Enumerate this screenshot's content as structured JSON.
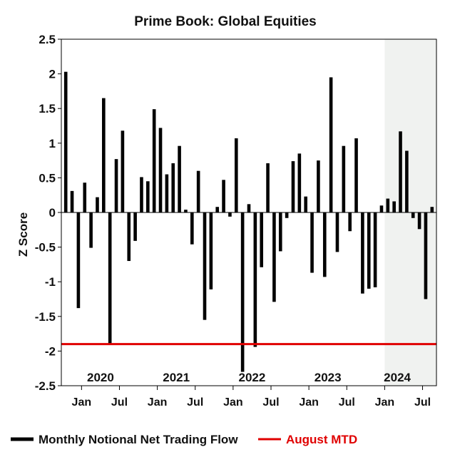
{
  "chart_data": {
    "type": "bar",
    "title": "Prime Book: Global Equities",
    "ylabel": "Z Score",
    "xlabel": "",
    "ylim": [
      -2.5,
      2.5
    ],
    "yticks": [
      2.5,
      2,
      1.5,
      1,
      0.5,
      0,
      -0.5,
      -1,
      -1.5,
      -2,
      -2.5
    ],
    "ytick_labels": [
      "2.5",
      "2",
      "1.5",
      "1",
      "0.5",
      "0",
      "-0.5",
      "-1",
      "-1.5",
      "-2",
      "-2.5"
    ],
    "x_ticks": [
      {
        "label": "Jan",
        "month_index": 3
      },
      {
        "label": "Jul",
        "month_index": 9
      },
      {
        "label": "Jan",
        "month_index": 15
      },
      {
        "label": "Jul",
        "month_index": 21
      },
      {
        "label": "Jan",
        "month_index": 27
      },
      {
        "label": "Jul",
        "month_index": 33
      },
      {
        "label": "Jan",
        "month_index": 39
      },
      {
        "label": "Jul",
        "month_index": 45
      },
      {
        "label": "Jan",
        "month_index": 51
      },
      {
        "label": "Jul",
        "month_index": 57
      }
    ],
    "year_labels": [
      {
        "label": "2020",
        "month_index": 6
      },
      {
        "label": "2021",
        "month_index": 18
      },
      {
        "label": "2022",
        "month_index": 30
      },
      {
        "label": "2023",
        "month_index": 42
      },
      {
        "label": "2024",
        "month_index": 53
      }
    ],
    "categories": [
      "2019-10",
      "2019-11",
      "2019-12",
      "2020-01",
      "2020-02",
      "2020-03",
      "2020-04",
      "2020-05",
      "2020-06",
      "2020-07",
      "2020-08",
      "2020-09",
      "2020-10",
      "2020-11",
      "2020-12",
      "2021-01",
      "2021-02",
      "2021-03",
      "2021-04",
      "2021-05",
      "2021-06",
      "2021-07",
      "2021-08",
      "2021-09",
      "2021-10",
      "2021-11",
      "2021-12",
      "2022-01",
      "2022-02",
      "2022-03",
      "2022-04",
      "2022-05",
      "2022-06",
      "2022-07",
      "2022-08",
      "2022-09",
      "2022-10",
      "2022-11",
      "2022-12",
      "2023-01",
      "2023-02",
      "2023-03",
      "2023-04",
      "2023-05",
      "2023-06",
      "2023-07",
      "2023-08",
      "2023-09",
      "2023-10",
      "2023-11",
      "2023-12",
      "2024-01",
      "2024-02",
      "2024-03",
      "2024-04",
      "2024-05",
      "2024-06",
      "2024-07",
      "2024-08"
    ],
    "series": [
      {
        "name": "Monthly Notional Net Trading Flow",
        "color": "#000000",
        "values": [
          2.03,
          0.31,
          -1.38,
          0.43,
          -0.51,
          0.22,
          1.65,
          -1.9,
          0.77,
          1.18,
          -0.7,
          -0.41,
          0.51,
          0.45,
          1.49,
          1.22,
          0.55,
          0.71,
          0.96,
          0.04,
          -0.46,
          0.6,
          -1.55,
          -1.11,
          0.08,
          0.47,
          -0.06,
          1.07,
          -2.3,
          0.12,
          -1.94,
          -0.79,
          0.71,
          -1.29,
          -0.56,
          -0.08,
          0.74,
          0.85,
          0.23,
          -0.87,
          0.75,
          -0.93,
          1.95,
          -0.57,
          0.96,
          -0.27,
          1.07,
          -1.17,
          -1.1,
          -1.08,
          0.1,
          0.2,
          0.16,
          1.17,
          0.89,
          -0.08,
          -0.24,
          -1.25,
          0.08
        ]
      }
    ],
    "reference_lines": [
      {
        "name": "August MTD",
        "value": -1.9,
        "color": "#e00000"
      }
    ],
    "shaded_region": {
      "from_month_index": 51,
      "label": "2024"
    },
    "legend_position": "bottom"
  },
  "legend": {
    "bar_label": "Monthly Notional Net Trading Flow",
    "line_label": "August MTD",
    "bar_color": "#000000",
    "line_color": "#e00000"
  }
}
